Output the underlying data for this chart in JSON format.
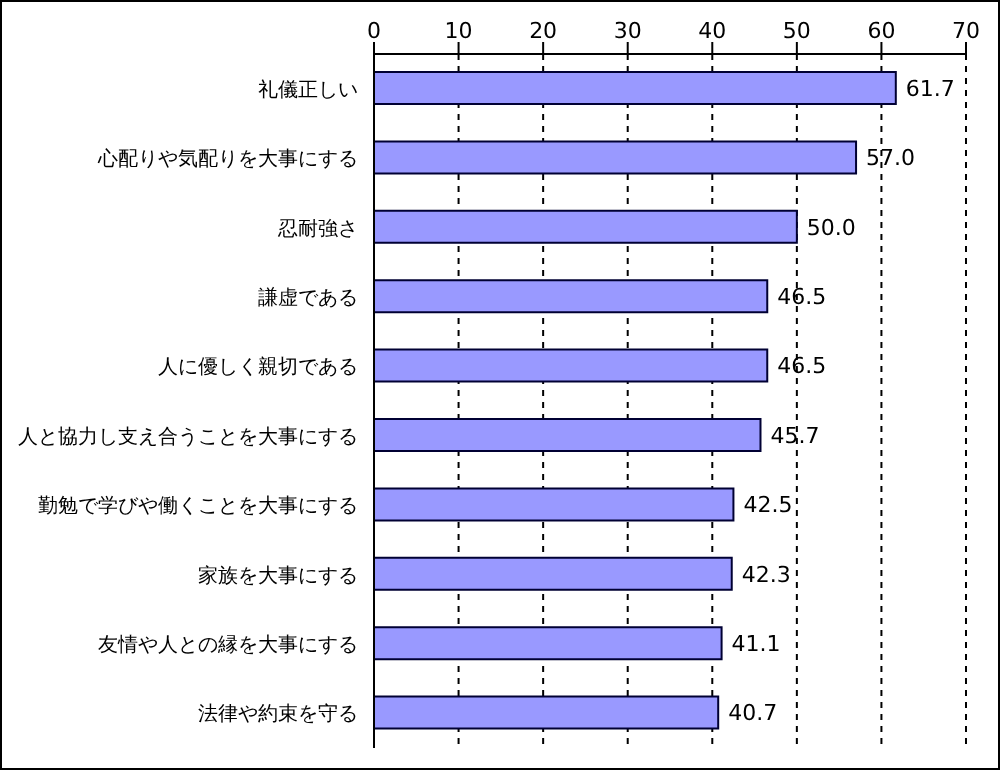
{
  "chart_data": {
    "type": "bar",
    "orientation": "horizontal",
    "categories": [
      "礼儀正しい",
      "心配りや気配りを大事にする",
      "忍耐強さ",
      "謙虚である",
      "人に優しく親切である",
      "人と協力し支え合うことを大事にする",
      "勤勉で学びや働くことを大事にする",
      "家族を大事にする",
      "友情や人との縁を大事にする",
      "法律や約束を守る"
    ],
    "values": [
      61.7,
      57.0,
      50.0,
      46.5,
      46.5,
      45.7,
      42.5,
      42.3,
      41.1,
      40.7
    ],
    "value_labels": [
      "61.7",
      "57.0",
      "50.0",
      "46.5",
      "46.5",
      "45.7",
      "42.5",
      "42.3",
      "41.1",
      "40.7"
    ],
    "color": "#9999ff",
    "xlim": [
      0,
      70
    ],
    "xticks": [
      0,
      10,
      20,
      30,
      40,
      50,
      60,
      70
    ],
    "grid": "x"
  }
}
